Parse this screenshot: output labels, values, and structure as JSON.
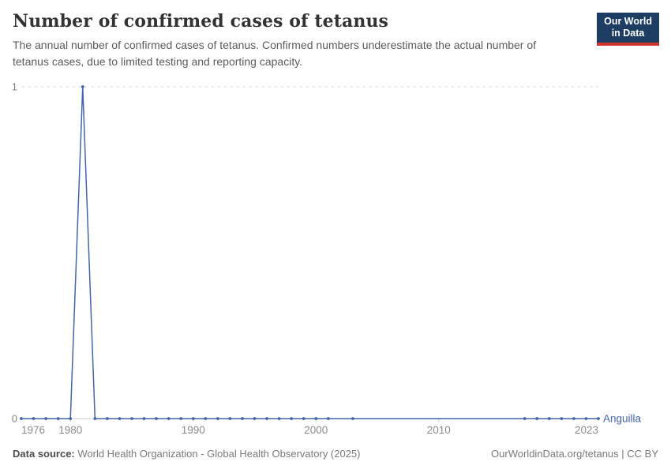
{
  "header": {
    "title": "Number of confirmed cases of tetanus",
    "subtitle": "The annual number of confirmed cases of tetanus. Confirmed numbers underestimate the actual number of tetanus cases, due to limited testing and reporting capacity."
  },
  "logo": {
    "line1": "Our World",
    "line2": "in Data",
    "bg_color": "#1d3d63",
    "bar_color": "#d0342c"
  },
  "chart_data": {
    "type": "line",
    "title": "Number of confirmed cases of tetanus",
    "entity_label": "Anguilla",
    "xlabel": "",
    "ylabel": "",
    "xlim": [
      1976,
      2023
    ],
    "ylim": [
      0,
      1
    ],
    "grid_on": true,
    "legend_position": "end-of-line",
    "line_color": "#4266a9",
    "grid_color": "#d9d9d9",
    "axis_text_color": "#8b8b8b",
    "y_ticks": [
      {
        "value": 0,
        "label": "0",
        "dashed": false
      },
      {
        "value": 1,
        "label": "1",
        "dashed": true
      }
    ],
    "x_ticks": [
      {
        "year": 1976,
        "label": "1976",
        "anchor": "start",
        "tick": false
      },
      {
        "year": 1980,
        "label": "1980",
        "anchor": "middle",
        "tick": true
      },
      {
        "year": 1990,
        "label": "1990",
        "anchor": "middle",
        "tick": true
      },
      {
        "year": 2000,
        "label": "2000",
        "anchor": "middle",
        "tick": true
      },
      {
        "year": 2010,
        "label": "2010",
        "anchor": "middle",
        "tick": true
      },
      {
        "year": 2023,
        "label": "2023",
        "anchor": "end",
        "tick": false
      }
    ],
    "series": [
      {
        "name": "Anguilla",
        "points": [
          [
            1976,
            0
          ],
          [
            1977,
            0
          ],
          [
            1978,
            0
          ],
          [
            1979,
            0
          ],
          [
            1980,
            0
          ],
          [
            1981,
            1
          ],
          [
            1982,
            0
          ],
          [
            1983,
            0
          ],
          [
            1984,
            0
          ],
          [
            1985,
            0
          ],
          [
            1986,
            0
          ],
          [
            1987,
            0
          ],
          [
            1988,
            0
          ],
          [
            1989,
            0
          ],
          [
            1990,
            0
          ],
          [
            1991,
            0
          ],
          [
            1992,
            0
          ],
          [
            1993,
            0
          ],
          [
            1994,
            0
          ],
          [
            1995,
            0
          ],
          [
            1996,
            0
          ],
          [
            1997,
            0
          ],
          [
            1998,
            0
          ],
          [
            1999,
            0
          ],
          [
            2000,
            0
          ],
          [
            2001,
            0
          ],
          [
            2003,
            0
          ],
          [
            2017,
            0
          ],
          [
            2018,
            0
          ],
          [
            2019,
            0
          ],
          [
            2020,
            0
          ],
          [
            2021,
            0
          ],
          [
            2022,
            0
          ],
          [
            2023,
            0
          ]
        ]
      }
    ]
  },
  "footer": {
    "source_label": "Data source:",
    "source_text": " World Health Organization - Global Health Observatory (2025)",
    "right_text": "OurWorldinData.org/tetanus | CC BY"
  }
}
